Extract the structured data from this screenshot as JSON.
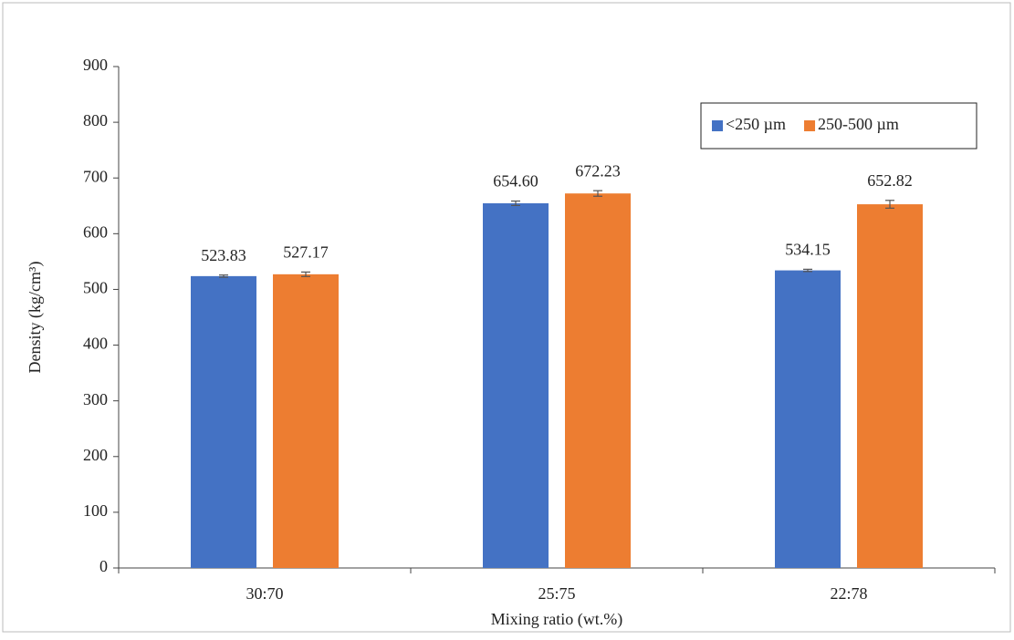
{
  "chart_data": {
    "type": "bar",
    "x_label": "Mixing ratio (wt.%)",
    "y_label": "Density (kg/cm³)",
    "categories": [
      "30:70",
      "25:75",
      "22:78"
    ],
    "series": [
      {
        "name": "<250 µm",
        "color": "#4472c4",
        "values": [
          523.83,
          654.6,
          534.15
        ],
        "value_labels": [
          "523.83",
          "654.60",
          "534.15"
        ],
        "errors": [
          2,
          4,
          2
        ]
      },
      {
        "name": "250-500 µm",
        "color": "#ed7d31",
        "values": [
          527.17,
          672.23,
          652.82
        ],
        "value_labels": [
          "527.17",
          "672.23",
          "652.82"
        ],
        "errors": [
          4,
          5,
          7
        ]
      }
    ],
    "ylim": [
      0,
      900
    ],
    "yticks": [
      0,
      100,
      200,
      300,
      400,
      500,
      600,
      700,
      800,
      900
    ],
    "legend": "upper right"
  }
}
